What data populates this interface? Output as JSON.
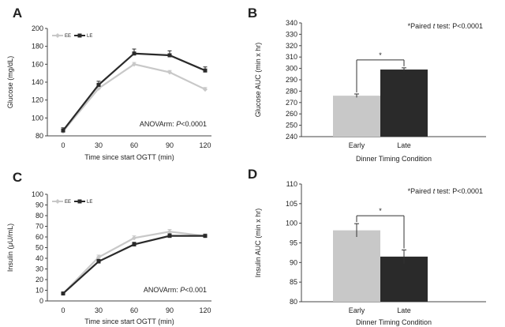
{
  "colors": {
    "early": "#c8c8c8",
    "late": "#2a2a2a",
    "axis": "#444444"
  },
  "chart_data": [
    {
      "id": "A",
      "type": "line",
      "panel_label": "A",
      "x": [
        0,
        30,
        60,
        90,
        120
      ],
      "x_tick_labels": [
        "0",
        "30",
        "60",
        "90",
        "120"
      ],
      "xlabel": "Time since start OGTT (min)",
      "ylabel": "Glucose (mg/dL)",
      "ylim": [
        80,
        200
      ],
      "yticks": [
        80,
        100,
        120,
        140,
        160,
        180,
        200
      ],
      "series": [
        {
          "name": "EE",
          "values": [
            85,
            133,
            160,
            151,
            132
          ],
          "errors": [
            2,
            3,
            2,
            2,
            2
          ]
        },
        {
          "name": "LE",
          "values": [
            86,
            137,
            172,
            170,
            153
          ],
          "errors": [
            3,
            4,
            5,
            5,
            4
          ]
        }
      ],
      "annotation_label": "ANOVArm: ",
      "annotation_value": "P<0.0001",
      "legend_position": "top-left"
    },
    {
      "id": "B",
      "type": "bar",
      "panel_label": "B",
      "categories": [
        "Early",
        "Late"
      ],
      "values": [
        276,
        299
      ],
      "errors": [
        1.5,
        1.5
      ],
      "xlabel": "Dinner Timing Condition",
      "ylabel": "Glucose AUC (min x hr)",
      "ylim": [
        240,
        340
      ],
      "yticks": [
        240,
        250,
        260,
        270,
        280,
        290,
        300,
        310,
        320,
        330,
        340
      ],
      "note_prefix": "*Paired ",
      "note_t": "t",
      "note_suffix": " test: P<0.0001",
      "significance": "*"
    },
    {
      "id": "C",
      "type": "line",
      "panel_label": "C",
      "x": [
        0,
        30,
        60,
        90,
        120
      ],
      "x_tick_labels": [
        "0",
        "30",
        "60",
        "90",
        "120"
      ],
      "xlabel": "Time since start OGTT (min)",
      "ylabel": "Insulin (μU/mL)",
      "ylim": [
        0,
        100
      ],
      "yticks": [
        0,
        10,
        20,
        30,
        40,
        50,
        60,
        70,
        80,
        90,
        100
      ],
      "series": [
        {
          "name": "EE",
          "values": [
            7,
            41,
            59,
            65,
            61
          ],
          "errors": [
            1,
            2,
            2,
            2,
            2
          ]
        },
        {
          "name": "LE",
          "values": [
            7,
            37,
            53,
            61,
            61
          ],
          "errors": [
            1,
            2,
            2,
            2,
            1
          ]
        }
      ],
      "annotation_label": "ANOVArm: ",
      "annotation_value": "P<0.001",
      "legend_position": "top-left"
    },
    {
      "id": "D",
      "type": "bar",
      "panel_label": "D",
      "categories": [
        "Early",
        "Late"
      ],
      "values": [
        98.2,
        91.5
      ],
      "errors": [
        1.7,
        1.7
      ],
      "xlabel": "Dinner Timing Condition",
      "ylabel": "Insulin AUC (min x hr)",
      "ylim": [
        80,
        110
      ],
      "yticks": [
        80,
        85,
        90,
        95,
        100,
        105,
        110
      ],
      "note_prefix": "*Paired ",
      "note_t": "t",
      "note_suffix": " test: P<0.0001",
      "significance": "*"
    }
  ]
}
